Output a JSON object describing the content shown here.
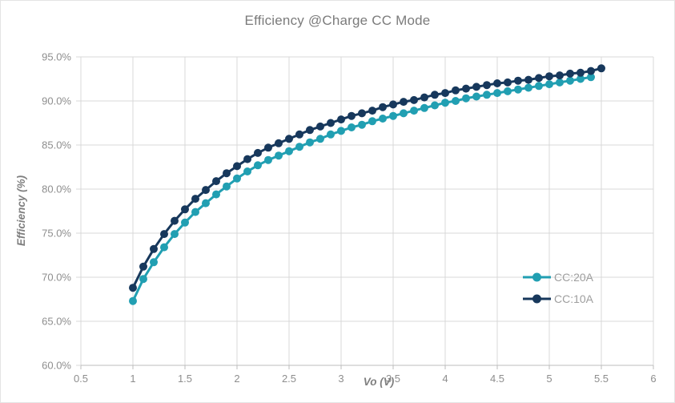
{
  "chart_data": {
    "type": "line",
    "title": "Efficiency @Charge CC Mode",
    "xlabel": "Vo (V)",
    "ylabel": "Efficiency (%)",
    "xlim": [
      0.5,
      6
    ],
    "ylim": [
      60,
      95
    ],
    "grid": true,
    "legend_position": "inside-right",
    "x_ticks": [
      0.5,
      1,
      1.5,
      2,
      2.5,
      3,
      3.5,
      4,
      4.5,
      5,
      5.5,
      6
    ],
    "x_tick_labels": [
      "0.5",
      "1",
      "1.5",
      "2",
      "2.5",
      "3",
      "3.5",
      "4",
      "4.5",
      "5",
      "5.5",
      "6"
    ],
    "y_ticks": [
      60,
      65,
      70,
      75,
      80,
      85,
      90,
      95
    ],
    "y_tick_labels": [
      "60.0%",
      "65.0%",
      "70.0%",
      "75.0%",
      "80.0%",
      "85.0%",
      "90.0%",
      "95.0%"
    ],
    "colors": {
      "background": "#ffffff",
      "gridline": "#d9d9d9",
      "axis_line": "#bcbcbc",
      "tick_label": "#8e8e8e",
      "axis_title": "#7f7f7f",
      "legend_text": "#9e9e9e",
      "title_text": "#7b7b7b"
    },
    "series": [
      {
        "name": "CC:20A",
        "color": "#219fb2",
        "x": [
          1.0,
          1.1,
          1.2,
          1.3,
          1.4,
          1.5,
          1.6,
          1.7,
          1.8,
          1.9,
          2.0,
          2.1,
          2.2,
          2.3,
          2.4,
          2.5,
          2.6,
          2.7,
          2.8,
          2.9,
          3.0,
          3.1,
          3.2,
          3.3,
          3.4,
          3.5,
          3.6,
          3.7,
          3.8,
          3.9,
          4.0,
          4.1,
          4.2,
          4.3,
          4.4,
          4.5,
          4.6,
          4.7,
          4.8,
          4.9,
          5.0,
          5.1,
          5.2,
          5.3,
          5.4
        ],
        "values": [
          67.3,
          69.8,
          71.7,
          73.4,
          74.9,
          76.2,
          77.4,
          78.4,
          79.4,
          80.3,
          81.2,
          82.0,
          82.7,
          83.3,
          83.8,
          84.3,
          84.8,
          85.3,
          85.7,
          86.2,
          86.6,
          87.0,
          87.3,
          87.7,
          88.0,
          88.3,
          88.6,
          88.9,
          89.2,
          89.5,
          89.8,
          90.0,
          90.3,
          90.5,
          90.7,
          90.9,
          91.1,
          91.3,
          91.5,
          91.7,
          91.9,
          92.1,
          92.3,
          92.5,
          92.7
        ]
      },
      {
        "name": "CC:10A",
        "color": "#17385c",
        "x": [
          1.0,
          1.1,
          1.2,
          1.3,
          1.4,
          1.5,
          1.6,
          1.7,
          1.8,
          1.9,
          2.0,
          2.1,
          2.2,
          2.3,
          2.4,
          2.5,
          2.6,
          2.7,
          2.8,
          2.9,
          3.0,
          3.1,
          3.2,
          3.3,
          3.4,
          3.5,
          3.6,
          3.7,
          3.8,
          3.9,
          4.0,
          4.1,
          4.2,
          4.3,
          4.4,
          4.5,
          4.6,
          4.7,
          4.8,
          4.9,
          5.0,
          5.1,
          5.2,
          5.3,
          5.4,
          5.5
        ],
        "values": [
          68.8,
          71.2,
          73.2,
          74.9,
          76.4,
          77.7,
          78.9,
          79.9,
          80.9,
          81.8,
          82.6,
          83.4,
          84.1,
          84.7,
          85.2,
          85.7,
          86.2,
          86.7,
          87.1,
          87.5,
          87.9,
          88.3,
          88.6,
          88.9,
          89.3,
          89.6,
          89.9,
          90.1,
          90.4,
          90.7,
          90.9,
          91.2,
          91.4,
          91.6,
          91.8,
          92.0,
          92.1,
          92.3,
          92.4,
          92.6,
          92.8,
          92.9,
          93.1,
          93.2,
          93.4,
          93.7
        ]
      }
    ]
  }
}
